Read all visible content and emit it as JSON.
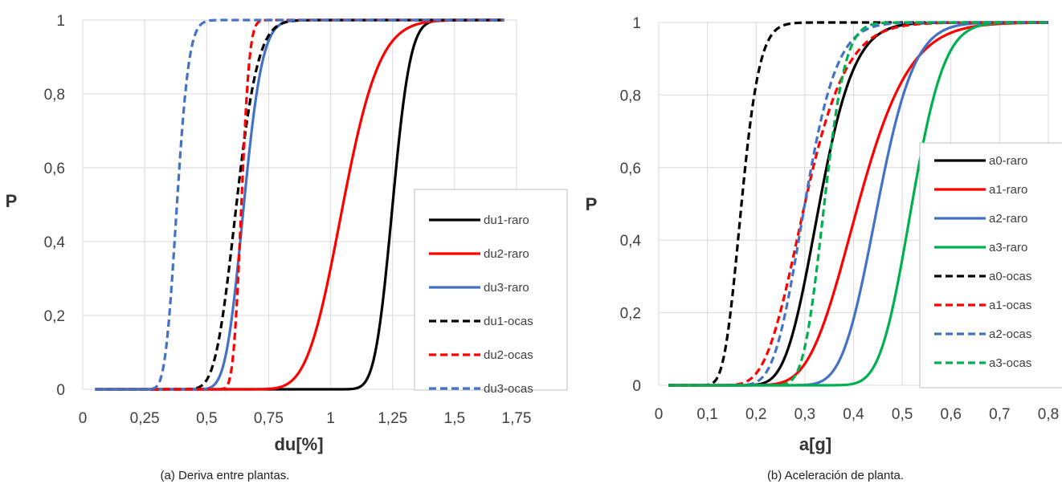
{
  "chart_data": [
    {
      "type": "line",
      "caption": "(a) Deriva entre plantas.",
      "xlabel": "du[%]",
      "ylabel": "P",
      "xlim": [
        0,
        1.75
      ],
      "ylim": [
        0,
        1
      ],
      "xticks": [
        "0",
        "0,25",
        "0,5",
        "0,75",
        "1",
        "1,25",
        "1,5",
        "1,75"
      ],
      "yticks": [
        "0",
        "0,2",
        "0,4",
        "0,6",
        "0,8",
        "1"
      ],
      "grid": true,
      "legend_position": "right",
      "x_range_plotted": [
        0.05,
        1.7
      ],
      "series": [
        {
          "name": "du1-raro",
          "color": "#000000",
          "dash": false,
          "median": 1.25,
          "beta": 0.045
        },
        {
          "name": "du2-raro",
          "color": "#ff0000",
          "dash": false,
          "median": 1.05,
          "beta": 0.11
        },
        {
          "name": "du3-raro",
          "color": "#4472c4",
          "dash": false,
          "median": 0.65,
          "beta": 0.09
        },
        {
          "name": "du1-ocas",
          "color": "#000000",
          "dash": true,
          "median": 0.62,
          "beta": 0.11
        },
        {
          "name": "du2-ocas",
          "color": "#ff0000",
          "dash": true,
          "median": 0.64,
          "beta": 0.04
        },
        {
          "name": "du3-ocas",
          "color": "#4472c4",
          "dash": true,
          "median": 0.38,
          "beta": 0.1
        }
      ]
    },
    {
      "type": "line",
      "caption": "(b) Aceleración de planta.",
      "xlabel": "a[g]",
      "ylabel": "P",
      "xlim": [
        0,
        0.8
      ],
      "ylim": [
        0,
        1
      ],
      "xticks": [
        "0",
        "0,1",
        "0,2",
        "0,3",
        "0,4",
        "0,5",
        "0,6",
        "0,7",
        "0,8"
      ],
      "yticks": [
        "0",
        "0,2",
        "0,4",
        "0,6",
        "0,8",
        "1"
      ],
      "grid": true,
      "legend_position": "right",
      "x_range_plotted": [
        0.02,
        0.8
      ],
      "series": [
        {
          "name": "a0-raro",
          "color": "#000000",
          "dash": false,
          "median": 0.33,
          "beta": 0.17
        },
        {
          "name": "a1-raro",
          "color": "#ff0000",
          "dash": false,
          "median": 0.41,
          "beta": 0.2
        },
        {
          "name": "a2-raro",
          "color": "#4472c4",
          "dash": false,
          "median": 0.45,
          "beta": 0.13
        },
        {
          "name": "a3-raro",
          "color": "#00b050",
          "dash": false,
          "median": 0.52,
          "beta": 0.1
        },
        {
          "name": "a0-ocas",
          "color": "#000000",
          "dash": true,
          "median": 0.17,
          "beta": 0.17
        },
        {
          "name": "a1-ocas",
          "color": "#ff0000",
          "dash": true,
          "median": 0.3,
          "beta": 0.22
        },
        {
          "name": "a2-ocas",
          "color": "#4472c4",
          "dash": true,
          "median": 0.3,
          "beta": 0.17
        },
        {
          "name": "a3-ocas",
          "color": "#00b050",
          "dash": true,
          "median": 0.34,
          "beta": 0.1
        }
      ]
    }
  ]
}
